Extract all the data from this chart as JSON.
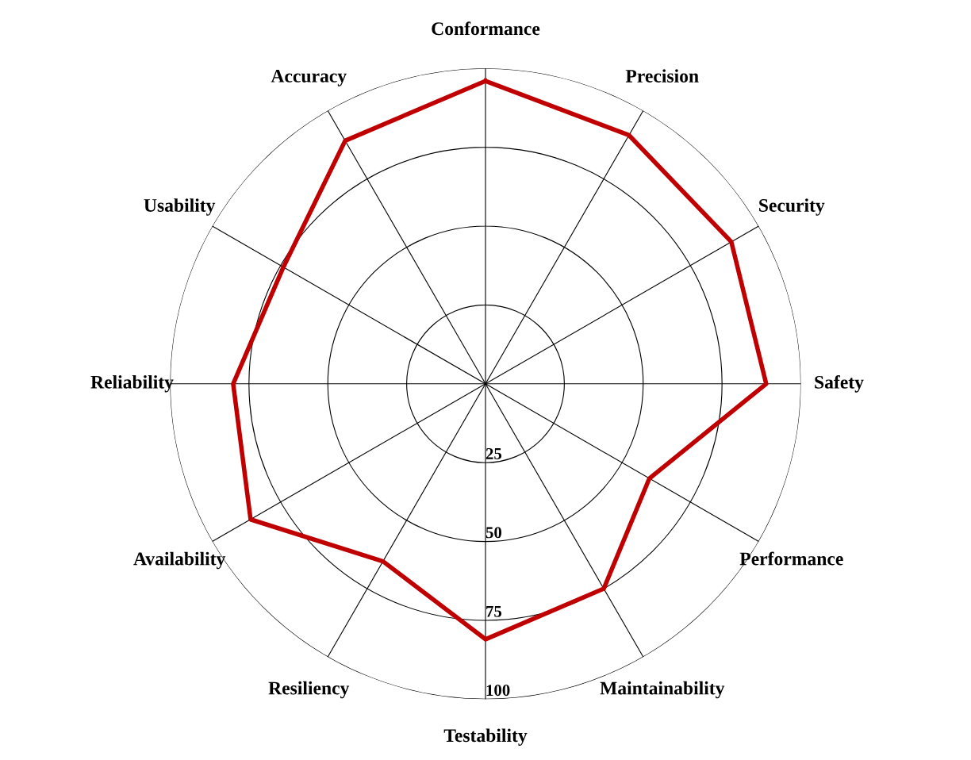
{
  "chart_data": {
    "type": "radar",
    "categories": [
      "Conformance",
      "Precision",
      "Security",
      "Safety",
      "Performance",
      "Maintainability",
      "Testability",
      "Resiliency",
      "Availability",
      "Reliability",
      "Usability",
      "Accuracy"
    ],
    "series": [
      {
        "color": "#c00000",
        "values": [
          96,
          91,
          90,
          89,
          60,
          75,
          81,
          65,
          86,
          80,
          74,
          89
        ]
      }
    ],
    "ylim": [
      0,
      100
    ],
    "yticks": [
      25,
      50,
      75,
      100
    ],
    "grid": true,
    "legend": false
  }
}
